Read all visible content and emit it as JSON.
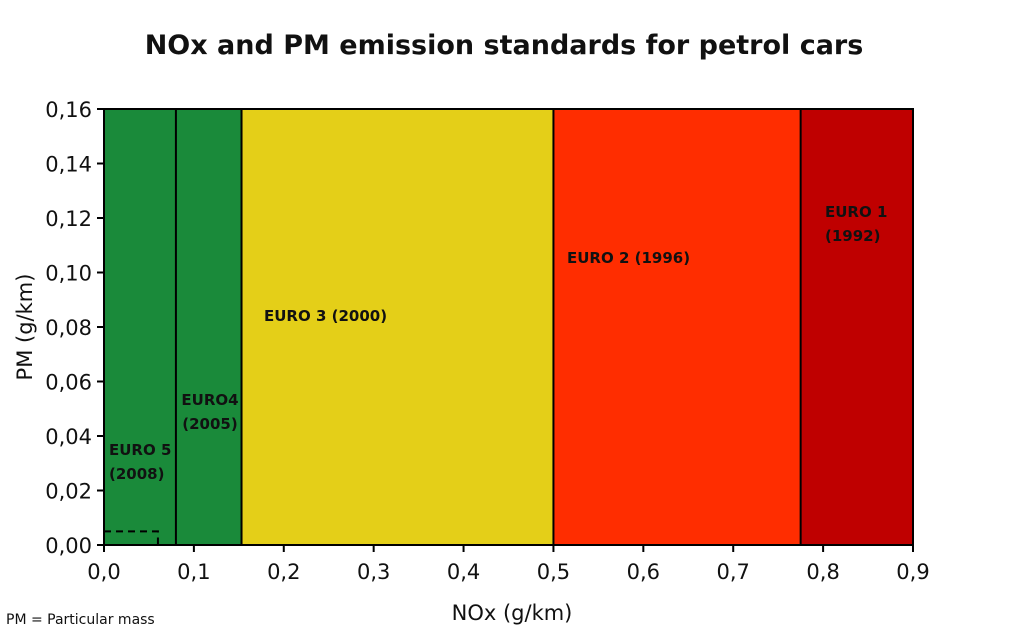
{
  "chart_data": {
    "type": "area",
    "title": "NOx and PM emission standards for petrol cars",
    "xlabel": "NOx (g/km)",
    "ylabel": "PM (g/km)",
    "xlim": [
      0,
      0.9
    ],
    "ylim": [
      0,
      0.16
    ],
    "x_ticks": [
      "0,0",
      "0,1",
      "0,2",
      "0,3",
      "0,4",
      "0,5",
      "0,6",
      "0,7",
      "0,8",
      "0,9"
    ],
    "y_ticks": [
      "0,00",
      "0,02",
      "0,04",
      "0,06",
      "0,08",
      "0,10",
      "0,12",
      "0,14",
      "0,16"
    ],
    "regions": [
      {
        "name": "EURO 1",
        "label_lines": [
          "EURO 1",
          "(1992)"
        ],
        "nox_limit": 0.9,
        "pm_limit": 0.16,
        "color": "#bf0000"
      },
      {
        "name": "EURO 2",
        "label_lines": [
          "EURO 2 (1996)"
        ],
        "nox_limit": 0.775,
        "pm_limit": 0.16,
        "color": "#ff2d00"
      },
      {
        "name": "EURO 3",
        "label_lines": [
          "EURO 3 (2000)"
        ],
        "nox_limit": 0.5,
        "pm_limit": 0.16,
        "color": "#e4cf18"
      },
      {
        "name": "EURO4",
        "label_lines": [
          "EURO4",
          "(2005)"
        ],
        "nox_limit": 0.153,
        "pm_limit": 0.16,
        "color": "#1a8a3a"
      },
      {
        "name": "EURO 5",
        "label_lines": [
          "EURO 5",
          "(2008)"
        ],
        "nox_limit": 0.08,
        "pm_limit": 0.16,
        "color": "#1a8a3a"
      }
    ],
    "dashed_box": {
      "nox": 0.06,
      "pm": 0.005
    },
    "grid": false,
    "legend": "none"
  },
  "footnote": "PM = Particular mass"
}
